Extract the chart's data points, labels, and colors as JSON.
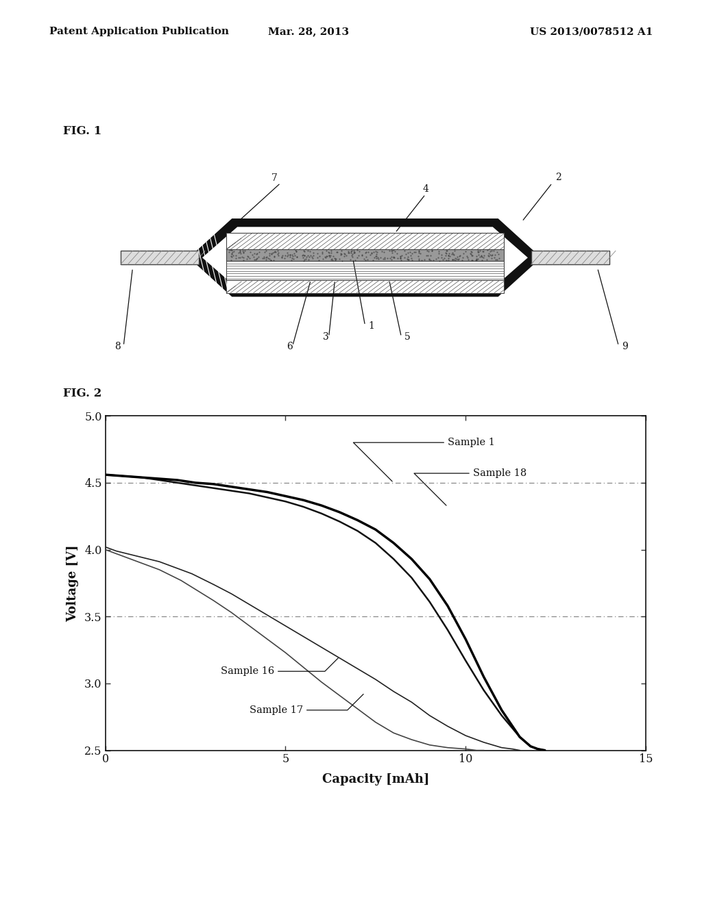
{
  "header_left": "Patent Application Publication",
  "header_center": "Mar. 28, 2013",
  "header_right": "US 2013/0078512 A1",
  "fig1_label": "FIG. 1",
  "fig2_label": "FIG. 2",
  "graph_xlabel": "Capacity [mAh]",
  "graph_ylabel": "Voltage [V]",
  "xlim": [
    0,
    15
  ],
  "ylim": [
    2.5,
    5
  ],
  "xticks": [
    0,
    5,
    10,
    15
  ],
  "yticks": [
    2.5,
    3,
    3.5,
    4,
    4.5,
    5
  ],
  "hline1": 4.5,
  "hline2": 3.5,
  "bg_color": "#ffffff",
  "sample1_x": [
    0,
    0.5,
    1.0,
    1.5,
    2.0,
    2.5,
    3.0,
    3.5,
    4.0,
    4.5,
    5.0,
    5.5,
    6.0,
    6.5,
    7.0,
    7.5,
    8.0,
    8.5,
    9.0,
    9.5,
    10.0,
    10.5,
    11.0,
    11.5,
    11.8,
    12.0,
    12.2
  ],
  "sample1_y": [
    4.56,
    4.55,
    4.54,
    4.53,
    4.52,
    4.5,
    4.49,
    4.47,
    4.45,
    4.43,
    4.4,
    4.37,
    4.33,
    4.28,
    4.22,
    4.15,
    4.05,
    3.93,
    3.78,
    3.58,
    3.33,
    3.05,
    2.8,
    2.6,
    2.53,
    2.51,
    2.5
  ],
  "sample18_x": [
    0,
    0.5,
    1.0,
    1.5,
    2.0,
    2.5,
    3.0,
    3.5,
    4.0,
    4.5,
    5.0,
    5.5,
    6.0,
    6.5,
    7.0,
    7.5,
    8.0,
    8.5,
    9.0,
    9.5,
    10.0,
    10.5,
    11.0,
    11.5,
    11.8,
    12.0,
    12.2
  ],
  "sample18_y": [
    4.56,
    4.55,
    4.54,
    4.52,
    4.5,
    4.48,
    4.46,
    4.44,
    4.42,
    4.39,
    4.36,
    4.32,
    4.27,
    4.21,
    4.14,
    4.05,
    3.93,
    3.79,
    3.61,
    3.4,
    3.17,
    2.95,
    2.76,
    2.6,
    2.53,
    2.51,
    2.5
  ],
  "sample16_x": [
    0,
    0.3,
    0.6,
    0.9,
    1.2,
    1.5,
    1.8,
    2.1,
    2.4,
    2.7,
    3.0,
    3.5,
    4.0,
    4.5,
    5.0,
    5.5,
    6.0,
    6.5,
    7.0,
    7.5,
    8.0,
    8.5,
    9.0,
    9.5,
    10.0,
    10.5,
    11.0,
    11.3,
    11.5
  ],
  "sample16_y": [
    4.02,
    3.99,
    3.97,
    3.95,
    3.93,
    3.91,
    3.88,
    3.85,
    3.82,
    3.78,
    3.74,
    3.67,
    3.59,
    3.51,
    3.43,
    3.35,
    3.27,
    3.19,
    3.11,
    3.03,
    2.94,
    2.86,
    2.76,
    2.68,
    2.61,
    2.56,
    2.52,
    2.51,
    2.5
  ],
  "sample17_x": [
    0,
    0.3,
    0.6,
    0.9,
    1.2,
    1.5,
    1.8,
    2.1,
    2.4,
    2.7,
    3.0,
    3.5,
    4.0,
    4.5,
    5.0,
    5.5,
    6.0,
    6.5,
    7.0,
    7.5,
    8.0,
    8.5,
    9.0,
    9.5,
    10.0,
    10.3,
    10.5
  ],
  "sample17_y": [
    4.0,
    3.97,
    3.94,
    3.91,
    3.88,
    3.85,
    3.81,
    3.77,
    3.72,
    3.67,
    3.62,
    3.53,
    3.43,
    3.33,
    3.23,
    3.12,
    3.01,
    2.91,
    2.81,
    2.71,
    2.63,
    2.58,
    2.54,
    2.52,
    2.51,
    2.5,
    2.5
  ]
}
